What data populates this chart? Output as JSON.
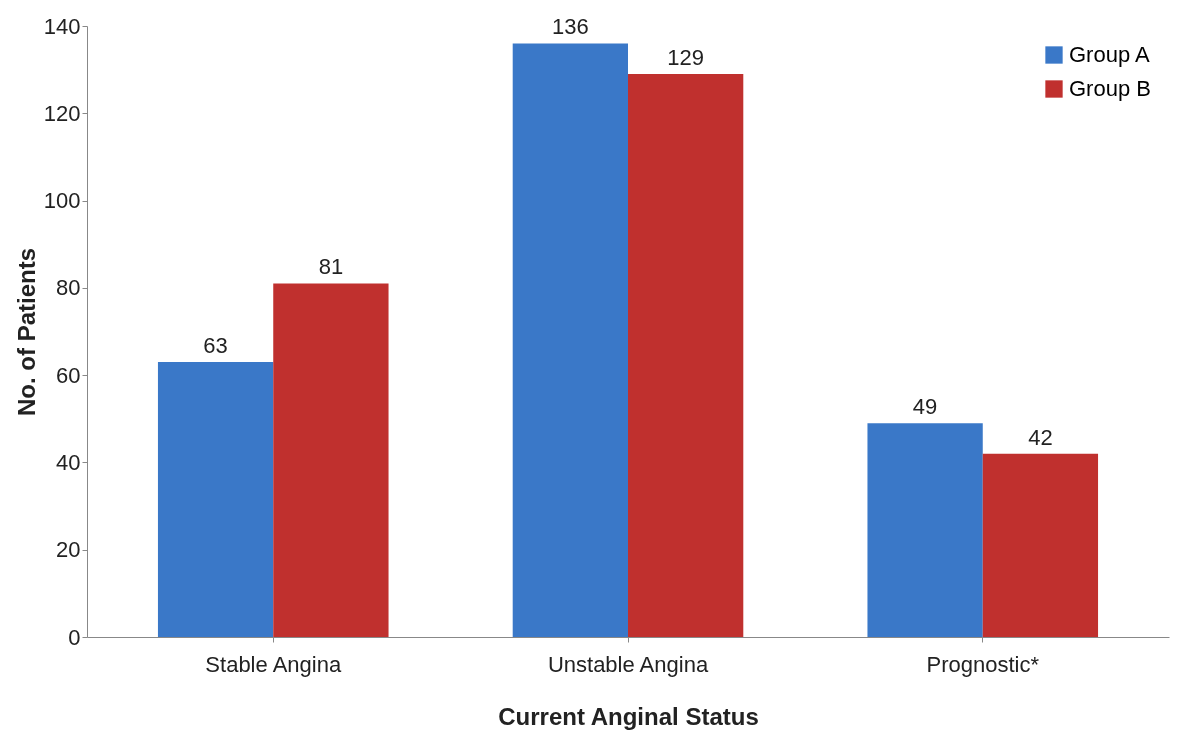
{
  "chart_data": {
    "type": "bar",
    "xlabel": "Current Anginal Status",
    "ylabel": "No. of Patients",
    "categories": [
      "Stable Angina",
      "Unstable Angina",
      "Prognostic*"
    ],
    "series": [
      {
        "name": "Group A",
        "color": "#3a78c8",
        "values": [
          63,
          136,
          49
        ]
      },
      {
        "name": "Group B",
        "color": "#c0302e",
        "values": [
          81,
          129,
          42
        ]
      }
    ],
    "ylim": [
      0,
      140
    ],
    "yticks": [
      0,
      20,
      40,
      60,
      80,
      100,
      120,
      140
    ],
    "data_labels": true,
    "legend": "top right",
    "grid": false
  }
}
